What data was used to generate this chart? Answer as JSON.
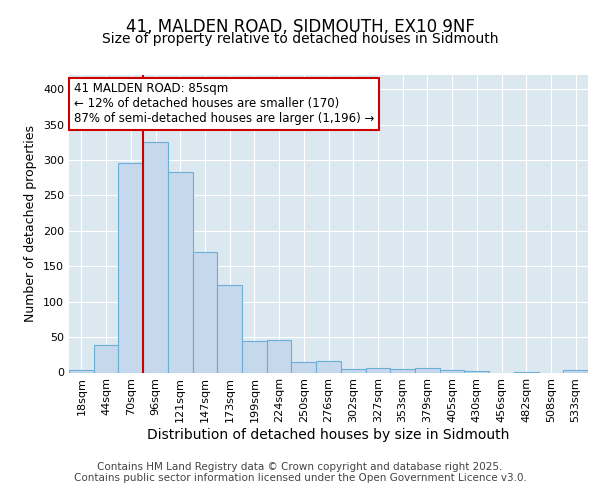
{
  "title": "41, MALDEN ROAD, SIDMOUTH, EX10 9NF",
  "subtitle": "Size of property relative to detached houses in Sidmouth",
  "xlabel": "Distribution of detached houses by size in Sidmouth",
  "ylabel": "Number of detached properties",
  "categories": [
    "18sqm",
    "44sqm",
    "70sqm",
    "96sqm",
    "121sqm",
    "147sqm",
    "173sqm",
    "199sqm",
    "224sqm",
    "250sqm",
    "276sqm",
    "302sqm",
    "327sqm",
    "353sqm",
    "379sqm",
    "405sqm",
    "430sqm",
    "456sqm",
    "482sqm",
    "508sqm",
    "533sqm"
  ],
  "values": [
    4,
    39,
    296,
    325,
    283,
    170,
    124,
    45,
    46,
    15,
    16,
    5,
    6,
    5,
    6,
    3,
    2,
    0,
    1,
    0,
    3
  ],
  "bar_color": "#c5d8ec",
  "bar_edge_color": "#6baed6",
  "annotation_text": "41 MALDEN ROAD: 85sqm\n← 12% of detached houses are smaller (170)\n87% of semi-detached houses are larger (1,196) →",
  "annotation_box_color": "#ffffff",
  "annotation_border_color": "#cc0000",
  "red_line_x": 2.5,
  "ylim": [
    0,
    420
  ],
  "yticks": [
    0,
    50,
    100,
    150,
    200,
    250,
    300,
    350,
    400
  ],
  "fig_background_color": "#ffffff",
  "plot_background_color": "#dce8f0",
  "grid_color": "#ffffff",
  "footer_text": "Contains HM Land Registry data © Crown copyright and database right 2025.\nContains public sector information licensed under the Open Government Licence v3.0.",
  "title_fontsize": 12,
  "subtitle_fontsize": 10,
  "xlabel_fontsize": 10,
  "ylabel_fontsize": 9,
  "tick_fontsize": 8,
  "footer_fontsize": 7.5,
  "annot_fontsize": 8.5
}
